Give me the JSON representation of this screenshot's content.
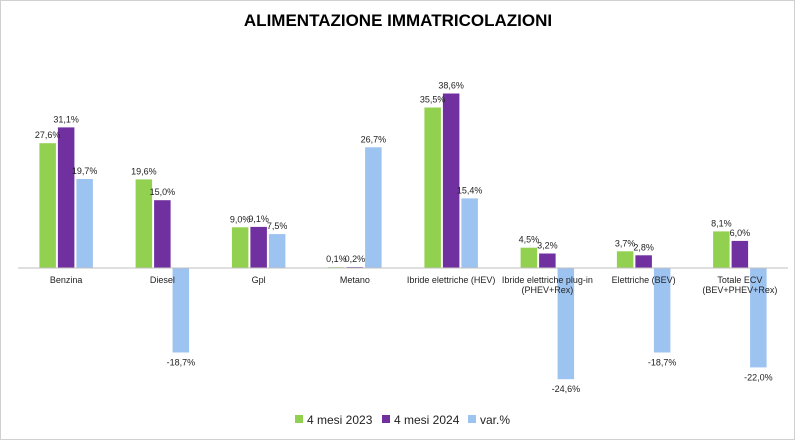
{
  "chart_data": {
    "type": "bar",
    "title": "ALIMENTAZIONE IMMATRICOLAZIONI",
    "xlabel": "",
    "ylabel": "",
    "grid": false,
    "legend": "bottom-center",
    "categories": [
      [
        "Benzina"
      ],
      [
        "Diesel"
      ],
      [
        "Gpl"
      ],
      [
        "Metano"
      ],
      [
        "Ibride elettriche (HEV)"
      ],
      [
        "Ibride elettriche plug-in",
        "(PHEV+Rex)"
      ],
      [
        "Elettriche (BEV)"
      ],
      [
        "Totale ECV",
        "(BEV+PHEV+Rex)"
      ]
    ],
    "series": [
      {
        "name": "4 mesi 2023",
        "color": "#92d050",
        "values": [
          27.6,
          19.6,
          9.0,
          0.1,
          35.5,
          4.5,
          3.7,
          8.1
        ],
        "labels": [
          "27,6%",
          "19,6%",
          "9,0%",
          "0,1%",
          "35,5%",
          "4,5%",
          "3,7%",
          "8,1%"
        ]
      },
      {
        "name": "4 mesi 2024",
        "color": "#7030a0",
        "values": [
          31.1,
          15.0,
          9.1,
          0.2,
          38.6,
          3.2,
          2.8,
          6.0
        ],
        "labels": [
          "31,1%",
          "15,0%",
          "9,1%",
          "0,2%",
          "38,6%",
          "3,2%",
          "2,8%",
          "6,0%"
        ]
      },
      {
        "name": "var.%",
        "color": "#9dc3f0",
        "values": [
          19.7,
          -18.7,
          7.5,
          26.7,
          15.4,
          -24.6,
          -18.7,
          -22.0
        ],
        "labels": [
          "19,7%",
          "-18,7%",
          "7,5%",
          "26,7%",
          "15,4%",
          "-24,6%",
          "-18,7%",
          "-22,0%"
        ]
      }
    ]
  }
}
